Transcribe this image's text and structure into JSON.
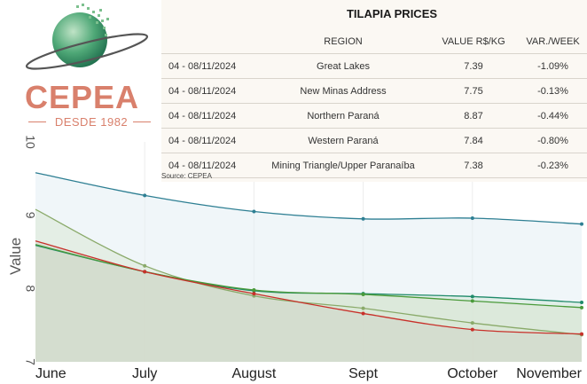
{
  "brand": {
    "name": "CEPEA",
    "since": "DESDE 1982",
    "colors": {
      "brand_red": "#d9806c",
      "globe_green": "#3f9a6a"
    }
  },
  "table": {
    "title": "TILAPIA PRICES",
    "headers": [
      "",
      "REGION",
      "VALUE R$/KG",
      "VAR./WEEK"
    ],
    "rows": [
      {
        "date": "04 - 08/11/2024",
        "region": "Great Lakes",
        "value": "7.39",
        "var": "-1.09%"
      },
      {
        "date": "04 - 08/11/2024",
        "region": "New Minas Address",
        "value": "7.75",
        "var": "-0.13%"
      },
      {
        "date": "04 - 08/11/2024",
        "region": "Northern Paraná",
        "value": "8.87",
        "var": "-0.44%"
      },
      {
        "date": "04 - 08/11/2024",
        "region": "Western Paraná",
        "value": "7.84",
        "var": "-0.80%"
      },
      {
        "date": "04 - 08/11/2024",
        "region": "Mining Triangle/Upper Paranaíba",
        "value": "7.38",
        "var": "-0.23%"
      }
    ],
    "source": "Source: CEPEA"
  },
  "chart_data": {
    "type": "area",
    "categories": [
      "June",
      "July",
      "August",
      "Sept",
      "October",
      "November"
    ],
    "ylabel": "Value",
    "ylim": [
      7,
      10
    ],
    "yticks": [
      7,
      8,
      9,
      10
    ],
    "grid": true,
    "series": [
      {
        "values": [
          9.58,
          9.27,
          9.05,
          8.95,
          8.96,
          8.88
        ],
        "color": "#2e7f93",
        "fill": "#e4eef4"
      },
      {
        "values": [
          9.08,
          8.31,
          7.9,
          7.73,
          7.53,
          7.37
        ],
        "color": "#8aaa6a",
        "fill": "#dbe8d6"
      },
      {
        "values": [
          8.59,
          8.23,
          7.97,
          7.93,
          7.89,
          7.81
        ],
        "color": "#1f8a6a",
        "fill": "#d4e7da"
      },
      {
        "values": [
          8.6,
          8.23,
          7.98,
          7.92,
          7.83,
          7.74
        ],
        "color": "#4a9a3a",
        "fill": "#d9e6d0"
      },
      {
        "values": [
          8.65,
          8.23,
          7.93,
          7.66,
          7.44,
          7.38
        ],
        "color": "#c8302a",
        "fill": "#cfd4c8"
      }
    ]
  }
}
